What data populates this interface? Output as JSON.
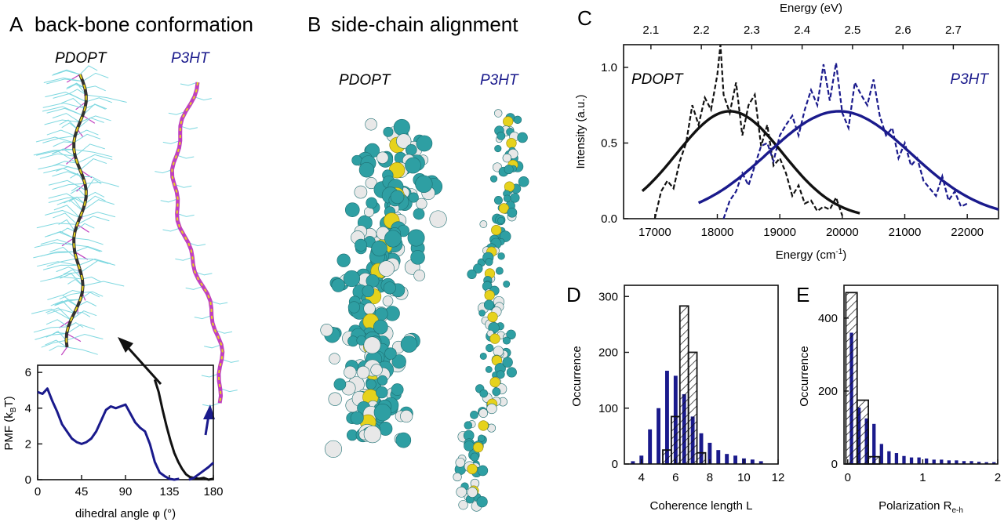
{
  "panels": {
    "a": {
      "letter": "A",
      "title": "back-bone conformation",
      "label_left": "PDOPT",
      "label_right": "P3HT"
    },
    "b": {
      "letter": "B",
      "title": "side-chain alignment",
      "label_left": "PDOPT",
      "label_right": "P3HT"
    },
    "c": {
      "letter": "C"
    },
    "d": {
      "letter": "D"
    },
    "e": {
      "letter": "E"
    }
  },
  "colors": {
    "pdopt": "#111111",
    "p3ht": "#1a1a8c",
    "backbone_yellow": "#e6d21c",
    "backbone_magenta": "#c040c0",
    "sidechain_cyan": "#7fd8e0",
    "atom_teal": "#2e9fa3",
    "atom_white": "#e8e8e8"
  },
  "chart_data": [
    {
      "id": "pmf",
      "type": "line",
      "xlabel": "dihedral angle φ (°)",
      "ylabel": "PMF (k",
      "ylabel_sub": "B",
      "ylabel_tail": "T)",
      "xlim": [
        0,
        180
      ],
      "ylim": [
        0,
        6.4
      ],
      "xticks": [
        "0",
        "45",
        "90",
        "135",
        "180"
      ],
      "yticks": [
        "0",
        "2",
        "4",
        "6"
      ],
      "series": [
        {
          "key": "p3ht",
          "x": [
            0,
            5,
            10,
            15,
            20,
            25,
            30,
            35,
            40,
            45,
            50,
            55,
            60,
            65,
            70,
            75,
            80,
            85,
            90,
            95,
            100,
            105,
            110,
            115,
            120,
            125,
            130,
            135,
            140,
            145
          ],
          "y": [
            4.9,
            4.8,
            5.1,
            4.4,
            3.8,
            3.1,
            2.7,
            2.3,
            2.1,
            2.0,
            2.1,
            2.3,
            2.7,
            3.3,
            3.9,
            4.1,
            4.0,
            4.1,
            4.2,
            3.7,
            3.2,
            2.9,
            2.7,
            2.0,
            1.0,
            0.4,
            0.2,
            0.05,
            0.0,
            0.05
          ]
        },
        {
          "key": "pdopt",
          "x": [
            120,
            124,
            128,
            132,
            136,
            140,
            144,
            148,
            152,
            156,
            160,
            165,
            170,
            175,
            180
          ],
          "y": [
            5.6,
            4.9,
            3.9,
            3.0,
            2.2,
            1.5,
            1.0,
            0.6,
            0.3,
            0.15,
            0.1,
            0.05,
            0.1,
            0.0,
            0.05
          ]
        },
        {
          "key": "p3ht_tail",
          "x": [
            155,
            160,
            165,
            170,
            175,
            180
          ],
          "y": [
            0.0,
            0.1,
            0.3,
            0.5,
            0.7,
            0.95
          ]
        }
      ]
    },
    {
      "id": "spectra",
      "type": "line",
      "xlabel": "Energy (cm",
      "xlabel_sup": "-1",
      "xlabel_tail": ")",
      "x2label": "Energy (eV)",
      "ylabel": "Intensity (a.u.)",
      "xlim": [
        16500,
        22500
      ],
      "ylim": [
        0,
        1.15
      ],
      "xticks": [
        "17000",
        "18000",
        "19000",
        "20000",
        "21000",
        "22000"
      ],
      "x2ticks": [
        "2.1",
        "2.2",
        "2.3",
        "2.4",
        "2.5",
        "2.6",
        "2.7"
      ],
      "yticks": [
        "0.0",
        "0.5",
        "1.0"
      ],
      "legend_left": "PDOPT",
      "legend_right": "P3HT",
      "series": [
        {
          "key": "pdopt_fit",
          "center": 18200,
          "width": 850,
          "amp": 0.71,
          "x_range": [
            16800,
            20300
          ]
        },
        {
          "key": "p3ht_fit",
          "center": 19950,
          "width": 1150,
          "amp": 0.71,
          "x_range": [
            17700,
            22500
          ]
        },
        {
          "key": "pdopt_data",
          "x": [
            17000,
            17100,
            17200,
            17300,
            17400,
            17500,
            17600,
            17700,
            17800,
            17900,
            18000,
            18050,
            18100,
            18200,
            18300,
            18400,
            18500,
            18600,
            18700,
            18800,
            18900,
            19000,
            19100,
            19200,
            19300,
            19400,
            19500,
            19600,
            19700,
            19800,
            19900,
            20000
          ],
          "y": [
            0.0,
            0.18,
            0.25,
            0.2,
            0.38,
            0.5,
            0.75,
            0.62,
            0.8,
            0.72,
            0.95,
            1.15,
            0.82,
            0.7,
            0.9,
            0.55,
            0.75,
            0.82,
            0.48,
            0.62,
            0.35,
            0.4,
            0.3,
            0.15,
            0.22,
            0.1,
            0.12,
            0.05,
            0.08,
            0.06,
            0.14,
            0.02
          ]
        },
        {
          "key": "p3ht_data",
          "x": [
            18100,
            18200,
            18300,
            18400,
            18500,
            18600,
            18700,
            18800,
            18900,
            19000,
            19100,
            19200,
            19300,
            19400,
            19500,
            19600,
            19700,
            19800,
            19900,
            20000,
            20100,
            20200,
            20300,
            20400,
            20500,
            20600,
            20700,
            20800,
            20900,
            21000,
            21100,
            21200,
            21300,
            21400,
            21500,
            21600,
            21700,
            21800,
            21900,
            22000
          ],
          "y": [
            0.0,
            0.12,
            0.18,
            0.3,
            0.22,
            0.35,
            0.48,
            0.5,
            0.38,
            0.55,
            0.62,
            0.68,
            0.55,
            0.72,
            0.85,
            0.75,
            1.02,
            0.78,
            1.03,
            0.7,
            0.6,
            0.9,
            0.82,
            0.75,
            0.92,
            0.68,
            0.55,
            0.6,
            0.4,
            0.5,
            0.35,
            0.4,
            0.25,
            0.2,
            0.15,
            0.28,
            0.12,
            0.18,
            0.08,
            0.1
          ]
        }
      ]
    },
    {
      "id": "coherence",
      "type": "bar",
      "xlabel": "Coherence length L",
      "ylabel": "Occurrence",
      "xlim": [
        3,
        12
      ],
      "ylim": [
        0,
        320
      ],
      "xticks": [
        "4",
        "6",
        "8",
        "10",
        "12"
      ],
      "yticks": [
        "0",
        "100",
        "200",
        "300"
      ],
      "bin_width": 0.25,
      "series": [
        {
          "key": "p3ht",
          "x": [
            3.5,
            4.0,
            4.5,
            5.0,
            5.5,
            6.0,
            6.5,
            7.0,
            7.5,
            8.0,
            8.5,
            9.0,
            9.5,
            10.0,
            10.5,
            11.0
          ],
          "values": [
            5,
            15,
            62,
            100,
            167,
            158,
            125,
            85,
            55,
            38,
            25,
            18,
            15,
            10,
            8,
            5
          ]
        },
        {
          "key": "pdopt_hatched",
          "x": [
            5.5,
            6.0,
            6.5,
            7.0,
            7.5
          ],
          "values": [
            25,
            85,
            283,
            200,
            20
          ],
          "bin_width": 0.5
        }
      ]
    },
    {
      "id": "polarization",
      "type": "bar",
      "xlabel": "Polarization R",
      "xlabel_sub": "e-h",
      "ylabel": "Occurrence",
      "xlim": [
        -0.05,
        2
      ],
      "ylim": [
        0,
        490
      ],
      "xticks": [
        "0",
        "1",
        "2"
      ],
      "yticks": [
        "0",
        "200",
        "400"
      ],
      "bin_width": 0.05,
      "series": [
        {
          "key": "p3ht",
          "x": [
            0.05,
            0.15,
            0.25,
            0.35,
            0.45,
            0.55,
            0.65,
            0.75,
            0.85,
            0.95,
            1.05,
            1.15,
            1.25,
            1.35,
            1.45,
            1.55,
            1.65,
            1.75,
            1.85,
            1.95
          ],
          "values": [
            360,
            155,
            125,
            110,
            55,
            35,
            30,
            22,
            18,
            18,
            15,
            12,
            12,
            10,
            10,
            8,
            8,
            6,
            5,
            5
          ]
        },
        {
          "key": "pdopt_hatched",
          "x": [
            0.05,
            0.2,
            0.35
          ],
          "values": [
            470,
            175,
            20
          ],
          "bin_width": 0.15
        }
      ]
    }
  ]
}
